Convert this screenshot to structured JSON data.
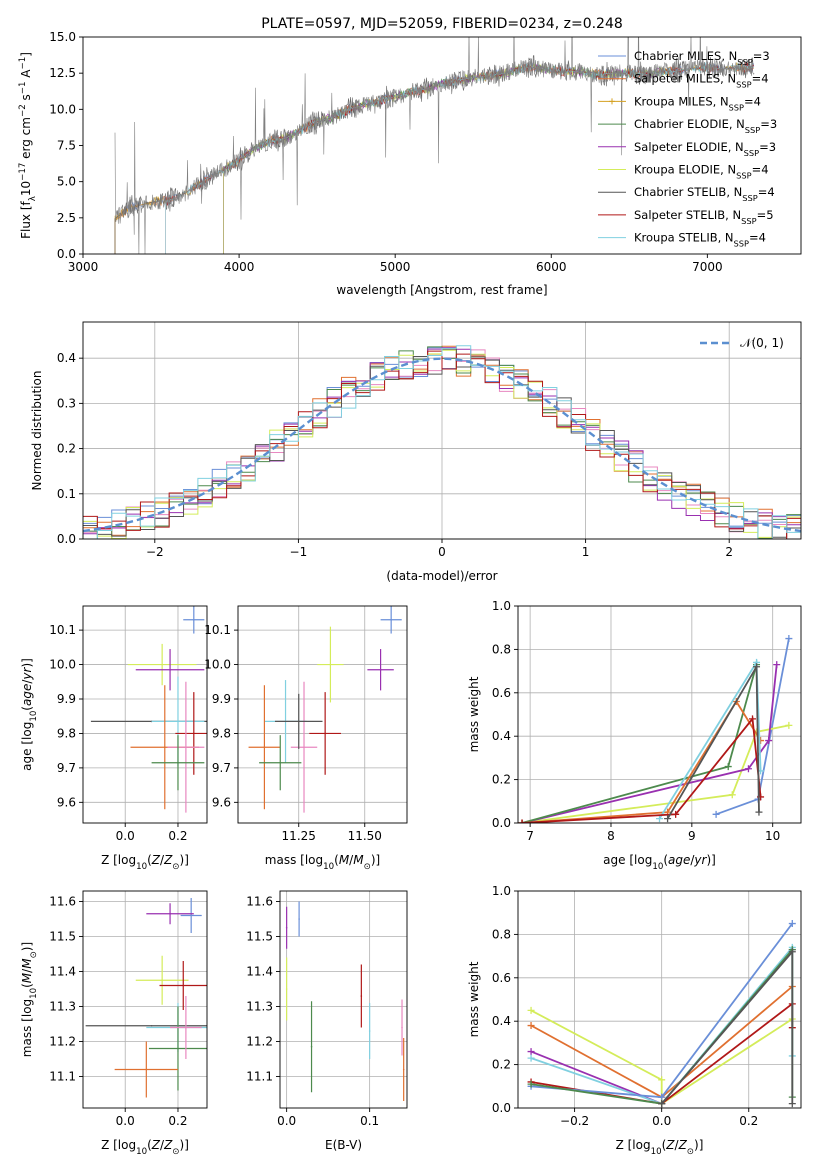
{
  "colors": {
    "Chabrier MILES": "#6a8fd8",
    "Salpeter MILES": "#e07030",
    "Kroupa MILES": "#d4a020",
    "Chabrier ELODIE": "#4d8a4d",
    "Salpeter ELODIE": "#9930b0",
    "Kroupa ELODIE": "#d4ec5a",
    "Chabrier STELIB": "#555555",
    "Salpeter STELIB": "#b01818",
    "Kroupa STELIB": "#80d0e0",
    "gaussian": "#5b8fd0",
    "spectrum": "#808080",
    "grid": "#b0b0b0",
    "pink": "#e888c0"
  },
  "chart_data": [
    {
      "id": "spectrum",
      "type": "line",
      "title": "PLATE=0597, MJD=52059, FIBERID=0234, z=0.248",
      "xlabel": "wavelength [Angstrom, rest frame]",
      "ylabel": "Flux [f",
      "xlim": [
        3000,
        7600
      ],
      "ylim": [
        0,
        15
      ],
      "xticks": [
        3000,
        4000,
        5000,
        6000,
        7000
      ],
      "yticks": [
        0.0,
        2.5,
        5.0,
        7.5,
        10.0,
        12.5,
        15.0
      ],
      "xtick_labels": [
        "3000",
        "4000",
        "5000",
        "6000",
        "7000"
      ],
      "ytick_labels": [
        "0.0",
        "2.5",
        "5.0",
        "7.5",
        "10.0",
        "12.5",
        "15.0"
      ],
      "grid": false,
      "legend_position": "top-right",
      "continuum": [
        [
          3200,
          2.4
        ],
        [
          3300,
          3.2
        ],
        [
          3450,
          3.6
        ],
        [
          3550,
          3.7
        ],
        [
          3650,
          4.2
        ],
        [
          3800,
          5.2
        ],
        [
          3900,
          5.8
        ],
        [
          4000,
          6.5
        ],
        [
          4100,
          7.3
        ],
        [
          4200,
          7.8
        ],
        [
          4300,
          8.0
        ],
        [
          4400,
          8.6
        ],
        [
          4500,
          9.2
        ],
        [
          4600,
          9.4
        ],
        [
          4700,
          10.0
        ],
        [
          4800,
          10.3
        ],
        [
          4900,
          10.6
        ],
        [
          5000,
          10.9
        ],
        [
          5100,
          11.2
        ],
        [
          5200,
          11.4
        ],
        [
          5300,
          11.8
        ],
        [
          5400,
          12.0
        ],
        [
          5500,
          12.2
        ],
        [
          5600,
          12.3
        ],
        [
          5700,
          12.5
        ],
        [
          5800,
          12.8
        ],
        [
          5900,
          12.9
        ],
        [
          6000,
          12.7
        ],
        [
          6100,
          12.6
        ],
        [
          6200,
          12.6
        ],
        [
          6300,
          12.4
        ],
        [
          6400,
          12.5
        ],
        [
          6500,
          12.5
        ],
        [
          6600,
          12.4
        ],
        [
          6700,
          12.6
        ],
        [
          6800,
          12.7
        ],
        [
          6900,
          12.8
        ],
        [
          7000,
          12.9
        ],
        [
          7100,
          12.8
        ],
        [
          7200,
          12.9
        ],
        [
          7300,
          12.9
        ]
      ],
      "legend": [
        {
          "label": "Chabrier MILES, N",
          "n": "3"
        },
        {
          "label": "Salpeter MILES, N",
          "n": "4"
        },
        {
          "label": "Kroupa MILES, N",
          "n": "4"
        },
        {
          "label": "Chabrier ELODIE, N",
          "n": "3"
        },
        {
          "label": "Salpeter ELODIE, N",
          "n": "3"
        },
        {
          "label": "Kroupa ELODIE, N",
          "n": "4"
        },
        {
          "label": "Chabrier STELIB, N",
          "n": "4"
        },
        {
          "label": "Salpeter STELIB, N",
          "n": "5"
        },
        {
          "label": "Kroupa STELIB, N",
          "n": "4"
        }
      ],
      "legend_sub": "SSP",
      "legend_eq": "="
    },
    {
      "id": "histogram",
      "type": "bar",
      "xlabel": "(data-model)/error",
      "ylabel": "Normed distribution",
      "xlim": [
        -2.5,
        2.5
      ],
      "ylim": [
        0,
        0.48
      ],
      "xticks": [
        -2,
        -1,
        0,
        1,
        2
      ],
      "xtick_labels": [
        "−2",
        "−1",
        "0",
        "1",
        "2"
      ],
      "yticks": [
        0.0,
        0.1,
        0.2,
        0.3,
        0.4
      ],
      "ytick_labels": [
        "0.0",
        "0.1",
        "0.2",
        "0.3",
        "0.4"
      ],
      "grid": true,
      "bin_width": 0.1,
      "legend_position": "top-right",
      "legend": "𝒩(0, 1)",
      "gaussian": {
        "mean": 0,
        "sigma": 1
      }
    },
    {
      "id": "age-vs-Z",
      "type": "scatter",
      "xlabel": "Z [log",
      "ylabel": "age  [log",
      "xlim": [
        -0.16,
        0.31
      ],
      "ylim": [
        9.54,
        10.17
      ],
      "xticks": [
        0.0,
        0.2
      ],
      "xtick_labels": [
        "0.0",
        "0.2"
      ],
      "yticks": [
        9.6,
        9.7,
        9.8,
        9.9,
        10.0,
        10.1
      ],
      "ytick_labels": [
        "9.6",
        "9.7",
        "9.8",
        "9.9",
        "10.0",
        "10.1"
      ],
      "grid": true,
      "points": [
        {
          "model": "Chabrier MILES",
          "x": 0.26,
          "xerr": 0.04,
          "y": 10.13,
          "yerr": 0.04
        },
        {
          "model": "Kroupa ELODIE",
          "x": 0.14,
          "xerr": 0.13,
          "y": 10.0,
          "yerr": 0.06
        },
        {
          "model": "Salpeter ELODIE",
          "x": 0.17,
          "xerr": 0.13,
          "y": 9.985,
          "yerr": 0.06
        },
        {
          "model": "Chabrier STELIB",
          "x": 0.1,
          "xerr": 0.23,
          "y": 9.835,
          "yerr": 0.0
        },
        {
          "model": "Kroupa STELIB",
          "x": 0.2,
          "xerr": 0.1,
          "y": 9.835,
          "yerr": 0.13
        },
        {
          "model": "Salpeter STELIB",
          "x": 0.26,
          "xerr": 0.07,
          "y": 9.8,
          "yerr": 0.12
        },
        {
          "model": "Salpeter MILES",
          "x": 0.15,
          "xerr": 0.13,
          "y": 9.76,
          "yerr": 0.18
        },
        {
          "model": "pink",
          "x": 0.23,
          "xerr": 0.07,
          "y": 9.76,
          "yerr": 0.19
        },
        {
          "model": "Chabrier ELODIE",
          "x": 0.2,
          "xerr": 0.1,
          "y": 9.715,
          "yerr": 0.08
        }
      ]
    },
    {
      "id": "age-vs-mass",
      "type": "scatter",
      "xlabel": "mass [log",
      "ylabel": "",
      "xlim": [
        11.02,
        11.66
      ],
      "ylim": [
        9.54,
        10.17
      ],
      "xticks": [
        11.25,
        11.5
      ],
      "xtick_labels": [
        "11.25",
        "11.50"
      ],
      "yticks": [
        9.6,
        9.7,
        9.8,
        9.9,
        10.0,
        10.1
      ],
      "ytick_labels": [
        "9.6",
        "9.7",
        "9.8",
        "9.9",
        "10.0",
        "10.1"
      ],
      "grid": true,
      "points": [
        {
          "model": "Chabrier MILES",
          "x": 11.6,
          "xerr": 0.04,
          "y": 10.13,
          "yerr": 0.04
        },
        {
          "model": "Salpeter ELODIE",
          "x": 11.56,
          "xerr": 0.05,
          "y": 9.985,
          "yerr": 0.06
        },
        {
          "model": "Kroupa ELODIE",
          "x": 11.37,
          "xerr": 0.05,
          "y": 10.0,
          "yerr": 0.11
        },
        {
          "model": "Kroupa STELIB",
          "x": 11.2,
          "xerr": 0.08,
          "y": 9.835,
          "yerr": 0.12
        },
        {
          "model": "Salpeter STELIB",
          "x": 11.35,
          "xerr": 0.06,
          "y": 9.8,
          "yerr": 0.12
        },
        {
          "model": "Salpeter MILES",
          "x": 11.12,
          "xerr": 0.06,
          "y": 9.76,
          "yerr": 0.18
        },
        {
          "model": "pink",
          "x": 11.27,
          "xerr": 0.05,
          "y": 9.76,
          "yerr": 0.19
        },
        {
          "model": "Chabrier ELODIE",
          "x": 11.18,
          "xerr": 0.08,
          "y": 9.715,
          "yerr": 0.08
        },
        {
          "model": "Chabrier STELIB",
          "x": 11.25,
          "xerr": 0.09,
          "y": 9.835,
          "yerr": 0.08
        }
      ]
    },
    {
      "id": "massweight-vs-age",
      "type": "line",
      "xlabel": "age  [log",
      "ylabel": "mass weight",
      "xlim": [
        6.85,
        10.35
      ],
      "ylim": [
        0,
        1.0
      ],
      "xticks": [
        7,
        8,
        9,
        10
      ],
      "xtick_labels": [
        "7",
        "8",
        "9",
        "10"
      ],
      "yticks": [
        0.0,
        0.2,
        0.4,
        0.6,
        0.8,
        1.0
      ],
      "ytick_labels": [
        "0.0",
        "0.2",
        "0.4",
        "0.6",
        "0.8",
        "1.0"
      ],
      "grid": true,
      "series": [
        {
          "model": "Chabrier MILES",
          "points": [
            [
              9.3,
              0.04
            ],
            [
              9.82,
              0.11
            ],
            [
              10.2,
              0.85
            ]
          ]
        },
        {
          "model": "Kroupa ELODIE",
          "points": [
            [
              6.9,
              0.0
            ],
            [
              9.5,
              0.13
            ],
            [
              9.8,
              0.42
            ],
            [
              10.2,
              0.45
            ]
          ]
        },
        {
          "model": "Salpeter ELODIE",
          "points": [
            [
              6.9,
              0.0
            ],
            [
              9.7,
              0.25
            ],
            [
              9.95,
              0.38
            ],
            [
              10.05,
              0.73
            ]
          ]
        },
        {
          "model": "Chabrier ELODIE",
          "points": [
            [
              6.9,
              0.0
            ],
            [
              9.45,
              0.26
            ],
            [
              9.8,
              0.73
            ]
          ]
        },
        {
          "model": "Salpeter MILES",
          "points": [
            [
              6.9,
              0.0
            ],
            [
              8.7,
              0.05
            ],
            [
              9.55,
              0.56
            ],
            [
              9.85,
              0.38
            ]
          ]
        },
        {
          "model": "Kroupa STELIB",
          "points": [
            [
              8.6,
              0.02
            ],
            [
              9.8,
              0.74
            ],
            [
              9.85,
              0.24
            ]
          ]
        },
        {
          "model": "Salpeter STELIB",
          "points": [
            [
              6.9,
              0.0
            ],
            [
              8.8,
              0.04
            ],
            [
              9.75,
              0.48
            ],
            [
              9.85,
              0.12
            ]
          ]
        },
        {
          "model": "Chabrier STELIB",
          "points": [
            [
              8.7,
              0.02
            ],
            [
              9.8,
              0.72
            ],
            [
              9.83,
              0.05
            ]
          ]
        }
      ]
    },
    {
      "id": "mass-vs-Z",
      "type": "scatter",
      "xlabel": "Z [log",
      "ylabel": "mass [log",
      "xlim": [
        -0.16,
        0.31
      ],
      "ylim": [
        11.01,
        11.63
      ],
      "xticks": [
        0.0,
        0.2
      ],
      "xtick_labels": [
        "0.0",
        "0.2"
      ],
      "yticks": [
        11.1,
        11.2,
        11.3,
        11.4,
        11.5,
        11.6
      ],
      "ytick_labels": [
        "11.1",
        "11.2",
        "11.3",
        "11.4",
        "11.5",
        "11.6"
      ],
      "grid": true,
      "points": [
        {
          "model": "Chabrier MILES",
          "x": 0.25,
          "xerr": 0.04,
          "y": 11.56,
          "yerr": 0.05
        },
        {
          "model": "Salpeter ELODIE",
          "x": 0.17,
          "xerr": 0.09,
          "y": 11.565,
          "yerr": 0.03
        },
        {
          "model": "Kroupa ELODIE",
          "x": 0.14,
          "xerr": 0.1,
          "y": 11.375,
          "yerr": 0.07
        },
        {
          "model": "Salpeter STELIB",
          "x": 0.22,
          "xerr": 0.09,
          "y": 11.36,
          "yerr": 0.07
        },
        {
          "model": "Chabrier STELIB",
          "x": 0.1,
          "xerr": 0.25,
          "y": 11.245,
          "yerr": 0.0
        },
        {
          "model": "Kroupa STELIB",
          "x": 0.2,
          "xerr": 0.12,
          "y": 11.24,
          "yerr": 0.07
        },
        {
          "model": "Chabrier ELODIE",
          "x": 0.2,
          "xerr": 0.11,
          "y": 11.18,
          "yerr": 0.12
        },
        {
          "model": "pink",
          "x": 0.23,
          "xerr": 0.06,
          "y": 11.24,
          "yerr": 0.09
        },
        {
          "model": "Salpeter MILES",
          "x": 0.08,
          "xerr": 0.12,
          "y": 11.12,
          "yerr": 0.08
        }
      ]
    },
    {
      "id": "mass-vs-EBV",
      "type": "scatter",
      "xlabel": "E(B-V)",
      "ylabel": "",
      "xlim": [
        -0.008,
        0.145
      ],
      "ylim": [
        11.01,
        11.63
      ],
      "xticks": [
        0.0,
        0.1
      ],
      "xtick_labels": [
        "0.0",
        "0.1"
      ],
      "yticks": [
        11.1,
        11.2,
        11.3,
        11.4,
        11.5,
        11.6
      ],
      "ytick_labels": [
        "11.1",
        "11.2",
        "11.3",
        "11.4",
        "11.5",
        "11.6"
      ],
      "grid": true,
      "points": [
        {
          "model": "Chabrier MILES",
          "x": 0.015,
          "xerr": 0.0,
          "y": 11.55,
          "yerr": 0.05
        },
        {
          "model": "Salpeter ELODIE",
          "x": 0.0,
          "xerr": 0.0,
          "y": 11.525,
          "yerr": 0.06
        },
        {
          "model": "Kroupa ELODIE",
          "x": 0.0,
          "xerr": 0.0,
          "y": 11.35,
          "yerr": 0.09
        },
        {
          "model": "Chabrier ELODIE",
          "x": 0.03,
          "xerr": 0.0,
          "y": 11.185,
          "yerr": 0.13
        },
        {
          "model": "Salpeter STELIB",
          "x": 0.09,
          "xerr": 0.0,
          "y": 11.33,
          "yerr": 0.09
        },
        {
          "model": "Kroupa STELIB",
          "x": 0.1,
          "xerr": 0.0,
          "y": 11.23,
          "yerr": 0.08
        },
        {
          "model": "pink",
          "x": 0.139,
          "xerr": 0.0,
          "y": 11.24,
          "yerr": 0.08
        },
        {
          "model": "Salpeter MILES",
          "x": 0.141,
          "xerr": 0.0,
          "y": 11.12,
          "yerr": 0.09
        }
      ]
    },
    {
      "id": "massweight-vs-Z",
      "type": "line",
      "xlabel": "Z [log",
      "ylabel": "mass weight",
      "xlim": [
        -0.33,
        0.32
      ],
      "ylim": [
        0,
        1.0
      ],
      "xticks": [
        -0.2,
        0.0,
        0.2
      ],
      "xtick_labels": [
        "−0.2",
        "0.0",
        "0.2"
      ],
      "yticks": [
        0.0,
        0.2,
        0.4,
        0.6,
        0.8,
        1.0
      ],
      "ytick_labels": [
        "0.0",
        "0.2",
        "0.4",
        "0.6",
        "0.8",
        "1.0"
      ],
      "grid": true,
      "series": [
        {
          "model": "Kroupa ELODIE",
          "points": [
            [
              -0.3,
              0.45
            ],
            [
              0.0,
              0.13
            ],
            [
              0.0,
              0.02
            ],
            [
              0.3,
              0.41
            ]
          ]
        },
        {
          "model": "Salpeter MILES",
          "points": [
            [
              -0.3,
              0.38
            ],
            [
              0.0,
              0.05
            ],
            [
              0.3,
              0.56
            ]
          ]
        },
        {
          "model": "Salpeter ELODIE",
          "points": [
            [
              -0.3,
              0.26
            ],
            [
              0.0,
              0.02
            ],
            [
              0.3,
              0.73
            ]
          ]
        },
        {
          "model": "Kroupa STELIB",
          "points": [
            [
              -0.3,
              0.23
            ],
            [
              0.0,
              0.02
            ],
            [
              0.3,
              0.74
            ],
            [
              0.3,
              0.24
            ]
          ]
        },
        {
          "model": "Salpeter STELIB",
          "points": [
            [
              -0.3,
              0.12
            ],
            [
              0.0,
              0.02
            ],
            [
              0.3,
              0.48
            ],
            [
              0.3,
              0.37
            ]
          ]
        },
        {
          "model": "Chabrier MILES",
          "points": [
            [
              -0.3,
              0.1
            ],
            [
              0.0,
              0.05
            ],
            [
              0.3,
              0.85
            ]
          ]
        },
        {
          "model": "Chabrier ELODIE",
          "points": [
            [
              -0.3,
              0.11
            ],
            [
              0.0,
              0.02
            ],
            [
              0.3,
              0.73
            ],
            [
              0.3,
              0.05
            ]
          ]
        },
        {
          "model": "Chabrier STELIB",
          "points": [
            [
              0.0,
              0.02
            ],
            [
              0.3,
              0.72
            ],
            [
              0.3,
              0.02
            ]
          ]
        }
      ]
    }
  ]
}
